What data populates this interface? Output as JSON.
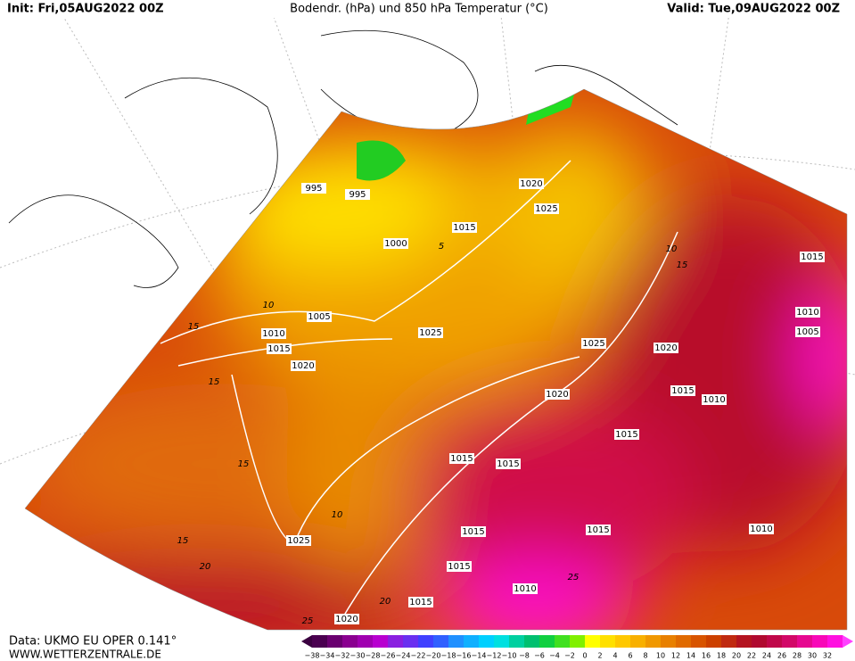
{
  "header": {
    "init": "Init: Fri,05AUG2022 00Z",
    "title": "Bodendr. (hPa) und 850 hPa Temperatur (°C)",
    "valid": "Valid: Tue,09AUG2022 00Z"
  },
  "isobar_labels": [
    "995",
    "995",
    "1000",
    "1015",
    "1020",
    "1025",
    "1005",
    "1010",
    "1015",
    "1020",
    "1025",
    "1025",
    "1020",
    "1020",
    "1015",
    "1010",
    "1015",
    "1010",
    "1005",
    "1015",
    "1015",
    "1015",
    "1015",
    "1010",
    "1015",
    "1025",
    "1015",
    "1010",
    "1015",
    "1020"
  ],
  "temperature_labels": [
    "5",
    "10",
    "15",
    "15",
    "15",
    "10",
    "15",
    "20",
    "20",
    "25",
    "25",
    "15",
    "10"
  ],
  "scale": [
    "−38",
    "−34",
    "−32",
    "−30",
    "−28",
    "−26",
    "−24",
    "−22",
    "−20",
    "−18",
    "−16",
    "−14",
    "−12",
    "−10",
    "−8",
    "−6",
    "−4",
    "−2",
    "0",
    "2",
    "4",
    "6",
    "8",
    "10",
    "12",
    "14",
    "16",
    "18",
    "20",
    "22",
    "24",
    "26",
    "28",
    "30",
    "32"
  ],
  "footer": {
    "data": "Data: UKMO EU OPER 0.141°",
    "site": "WWW.WETTERZENTRALE.DE"
  }
}
